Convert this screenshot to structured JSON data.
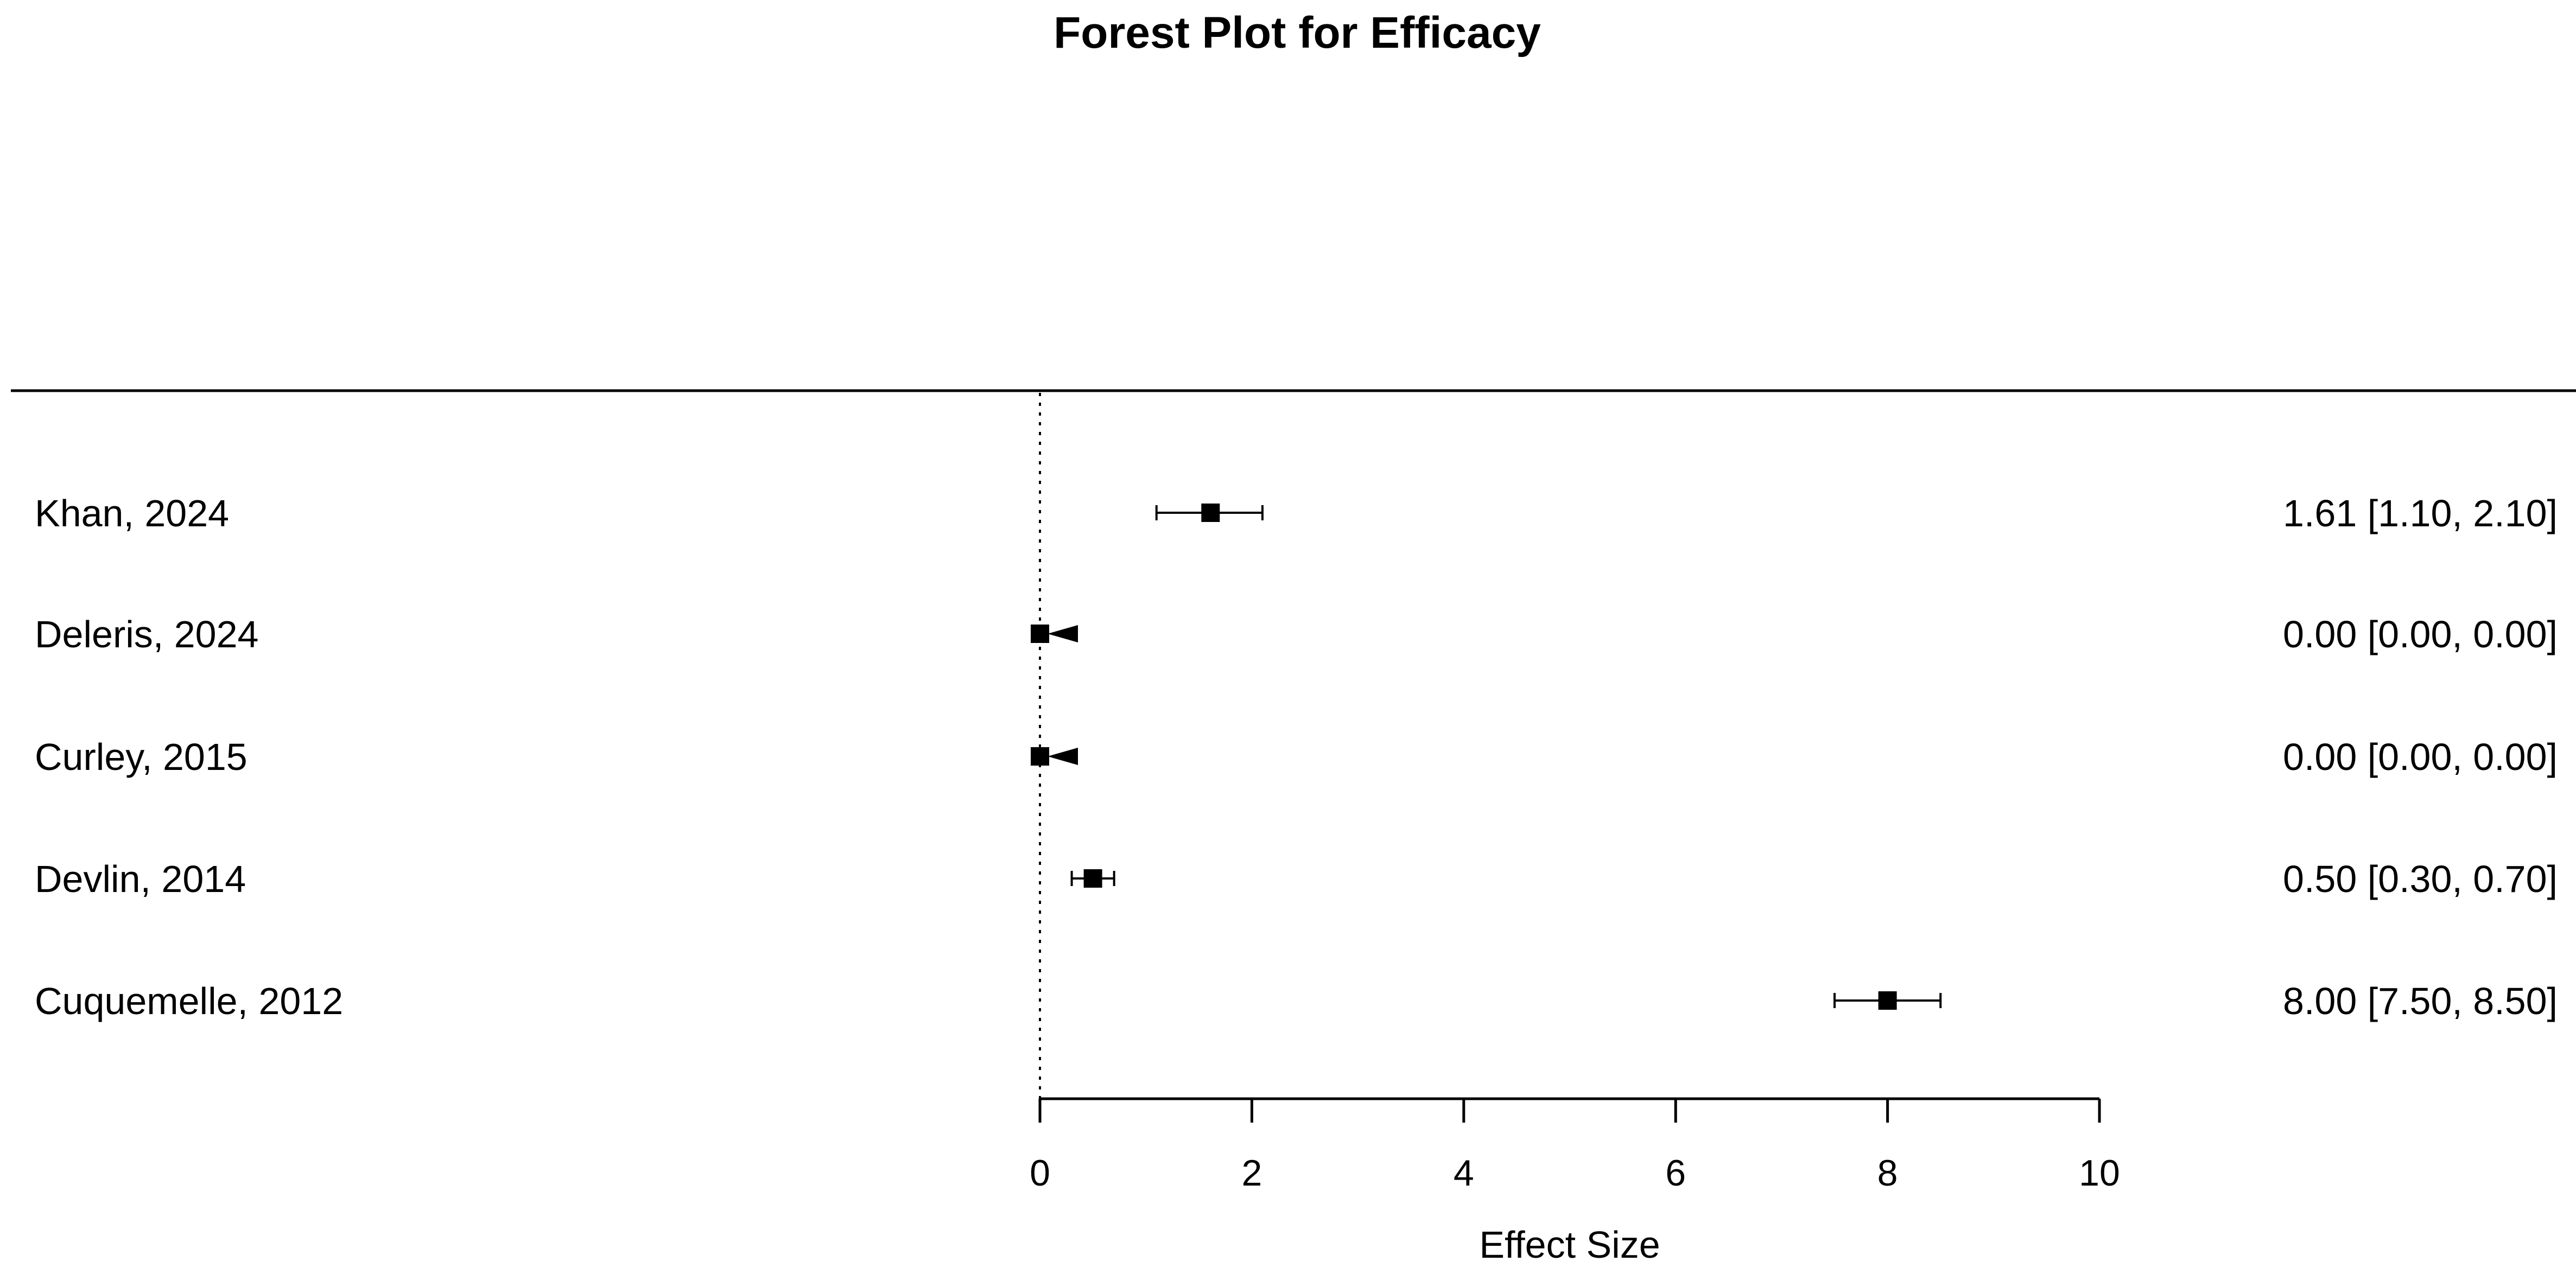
{
  "chart_data": {
    "type": "forest",
    "title": "Forest Plot for Efficacy",
    "xlabel": "Effect Size",
    "xlim": [
      0,
      10
    ],
    "x_ticks": [
      0,
      2,
      4,
      6,
      8,
      10
    ],
    "reference_line": 0,
    "studies": [
      {
        "label": "Khan, 2024",
        "estimate": 1.61,
        "ci_lower": 1.1,
        "ci_upper": 2.1,
        "text": "1.61 [1.10, 2.10]",
        "ci_extends_below_axis": false
      },
      {
        "label": "Deleris, 2024",
        "estimate": 0.0,
        "ci_lower": 0.0,
        "ci_upper": 0.0,
        "text": "0.00 [0.00, 0.00]",
        "ci_extends_below_axis": true
      },
      {
        "label": "Curley, 2015",
        "estimate": 0.0,
        "ci_lower": 0.0,
        "ci_upper": 0.0,
        "text": "0.00 [0.00, 0.00]",
        "ci_extends_below_axis": true
      },
      {
        "label": "Devlin, 2014",
        "estimate": 0.5,
        "ci_lower": 0.3,
        "ci_upper": 0.7,
        "text": "0.50 [0.30, 0.70]",
        "ci_extends_below_axis": false
      },
      {
        "label": "Cuquemelle, 2012",
        "estimate": 8.0,
        "ci_lower": 7.5,
        "ci_upper": 8.5,
        "text": "8.00 [7.50, 8.50]",
        "ci_extends_below_axis": false
      }
    ]
  }
}
